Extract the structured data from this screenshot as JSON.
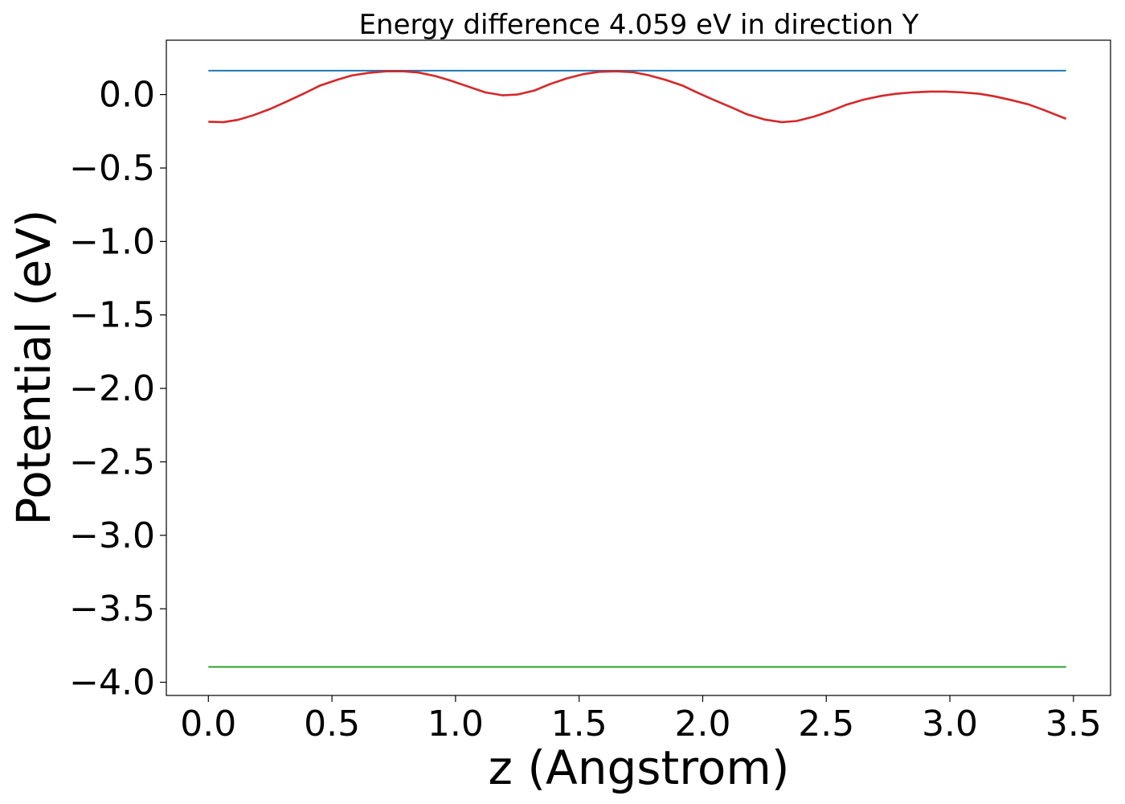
{
  "chart_data": {
    "type": "line",
    "title": "Energy difference 4.059 eV in direction Y",
    "xlabel": "z (Angstrom)",
    "ylabel": "Potential (eV)",
    "xlim": [
      -0.17,
      3.65
    ],
    "ylim": [
      -4.09,
      0.37
    ],
    "xticks": [
      0.0,
      0.5,
      1.0,
      1.5,
      2.0,
      2.5,
      3.0,
      3.5
    ],
    "xtick_labels": [
      "0.0",
      "0.5",
      "1.0",
      "1.5",
      "2.0",
      "2.5",
      "3.0",
      "3.5"
    ],
    "yticks": [
      0.0,
      -0.5,
      -1.0,
      -1.5,
      -2.0,
      -2.5,
      -3.0,
      -3.5,
      -4.0
    ],
    "ytick_labels": [
      "0.0",
      "−0.5",
      "−1.0",
      "−1.5",
      "−2.0",
      "−2.5",
      "−3.0",
      "−3.5",
      "−4.0"
    ],
    "grid": false,
    "legend": false,
    "series": [
      {
        "color": "#1f77b4",
        "x": [
          0.0,
          3.47
        ],
        "y": [
          0.163,
          0.163
        ]
      },
      {
        "color": "#2ca02c",
        "x": [
          0.0,
          3.47
        ],
        "y": [
          -3.896,
          -3.896
        ]
      },
      {
        "color": "#d62728",
        "x": [
          0.0,
          0.06,
          0.12,
          0.18,
          0.25,
          0.32,
          0.39,
          0.45,
          0.52,
          0.58,
          0.65,
          0.72,
          0.79,
          0.85,
          0.92,
          0.98,
          1.05,
          1.12,
          1.19,
          1.25,
          1.32,
          1.38,
          1.45,
          1.52,
          1.58,
          1.65,
          1.72,
          1.78,
          1.85,
          1.92,
          1.98,
          2.05,
          2.12,
          2.18,
          2.25,
          2.32,
          2.38,
          2.45,
          2.52,
          2.58,
          2.65,
          2.72,
          2.78,
          2.85,
          2.92,
          2.98,
          3.05,
          3.12,
          3.18,
          3.25,
          3.32,
          3.38,
          3.47
        ],
        "y": [
          -0.185,
          -0.188,
          -0.172,
          -0.142,
          -0.098,
          -0.045,
          0.01,
          0.06,
          0.1,
          0.13,
          0.148,
          0.158,
          0.158,
          0.15,
          0.125,
          0.095,
          0.055,
          0.015,
          -0.005,
          0.0,
          0.028,
          0.07,
          0.11,
          0.14,
          0.155,
          0.158,
          0.152,
          0.132,
          0.1,
          0.06,
          0.012,
          -0.04,
          -0.09,
          -0.135,
          -0.17,
          -0.188,
          -0.18,
          -0.15,
          -0.11,
          -0.07,
          -0.035,
          -0.01,
          0.005,
          0.015,
          0.02,
          0.02,
          0.015,
          0.005,
          -0.012,
          -0.038,
          -0.068,
          -0.105,
          -0.165
        ]
      }
    ]
  }
}
